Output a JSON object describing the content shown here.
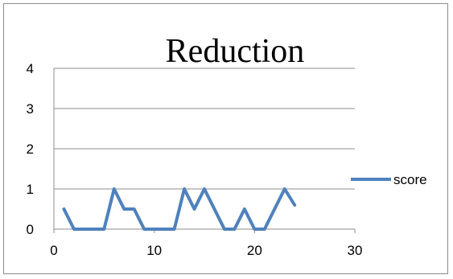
{
  "chart_data": {
    "type": "line",
    "title": "Reduction",
    "xlabel": "",
    "ylabel": "",
    "xlim": [
      0,
      30
    ],
    "ylim": [
      0,
      4
    ],
    "x_ticks": [
      "0",
      "10",
      "20",
      "30"
    ],
    "y_ticks": [
      "0",
      "1",
      "2",
      "3",
      "4"
    ],
    "grid": "horizontal",
    "legend_position": "right",
    "series": [
      {
        "name": "score",
        "color": "#4f81bd",
        "x": [
          1,
          2,
          3,
          4,
          5,
          6,
          7,
          8,
          9,
          10,
          11,
          12,
          13,
          14,
          15,
          16,
          17,
          18,
          19,
          20,
          21,
          22,
          23,
          24
        ],
        "values": [
          0.5,
          0,
          0,
          0,
          0,
          1,
          0.5,
          0.5,
          0,
          0,
          0,
          0,
          1,
          0.5,
          1,
          0.5,
          0,
          0,
          0.5,
          0,
          0,
          0.5,
          1,
          0.6
        ]
      }
    ]
  }
}
